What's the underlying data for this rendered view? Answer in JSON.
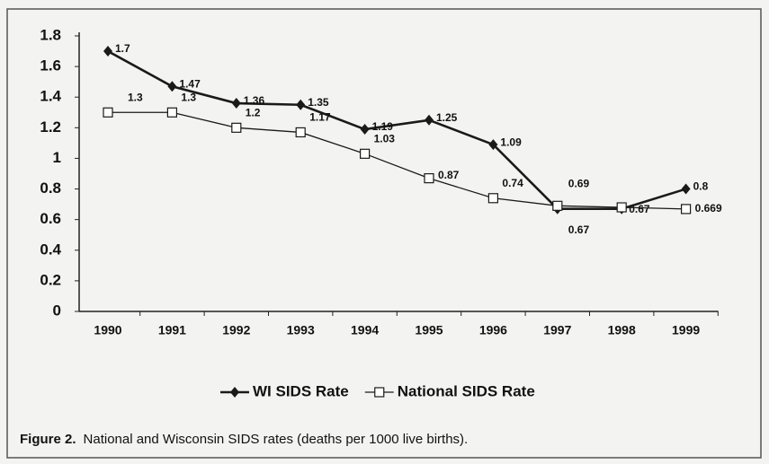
{
  "chart_data": {
    "type": "line",
    "categories": [
      "1990",
      "1991",
      "1992",
      "1993",
      "1994",
      "1995",
      "1996",
      "1997",
      "1998",
      "1999"
    ],
    "series": [
      {
        "name": "WI SIDS Rate",
        "color": "#1a1a1a",
        "marker": "diamond",
        "values": [
          1.7,
          1.47,
          1.36,
          1.35,
          1.19,
          1.25,
          1.09,
          0.67,
          0.67,
          0.8
        ],
        "value_labels": [
          "1.7",
          "1.47",
          "1.36",
          "1.35",
          "1.19",
          "1.25",
          "1.09",
          "0.67",
          "0.67",
          "0.8"
        ]
      },
      {
        "name": "National SIDS Rate",
        "color": "#1a1a1a",
        "marker": "square",
        "values": [
          1.3,
          1.3,
          1.2,
          1.17,
          1.03,
          0.87,
          0.74,
          0.69,
          0.68,
          0.669
        ],
        "value_labels": [
          "1.3",
          "1.3",
          "1.2",
          "1.17",
          "1.03",
          "0.87",
          "0.74",
          "0.69",
          null,
          "0.669"
        ]
      }
    ],
    "ylim": [
      0,
      1.8
    ],
    "yticks": [
      0,
      0.2,
      0.4,
      0.6,
      0.8,
      1,
      1.2,
      1.4,
      1.6,
      1.8
    ],
    "legend": "bottom"
  },
  "caption": {
    "label": "Figure 2.",
    "text": "National and Wisconsin SIDS rates (deaths per 1000 live births)."
  }
}
